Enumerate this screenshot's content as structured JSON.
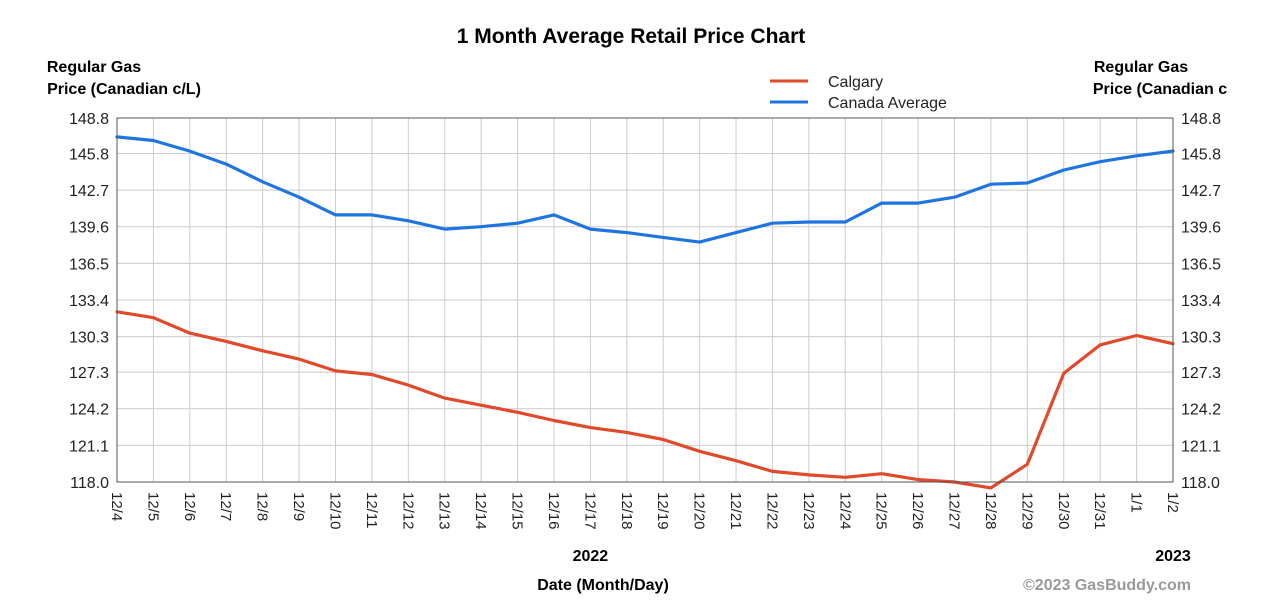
{
  "chart_data": {
    "type": "line",
    "title": "1 Month Average Retail Price Chart",
    "ylabel_left": [
      "Regular Gas",
      "Price (Canadian c/L)"
    ],
    "ylabel_right": [
      "Regular Gas",
      "Price (Canadian c"
    ],
    "xlabel": "Date (Month/Day)",
    "ylim": [
      118.0,
      148.8
    ],
    "y_ticks": [
      "118.0",
      "121.1",
      "124.2",
      "127.3",
      "130.3",
      "133.4",
      "136.5",
      "139.6",
      "142.7",
      "145.8",
      "148.8"
    ],
    "grid": true,
    "legend_position": "top-right",
    "years": [
      {
        "label": "2022",
        "anchor": "12/17"
      },
      {
        "label": "2023",
        "anchor": "1/2"
      }
    ],
    "categories": [
      "12/4",
      "12/5",
      "12/6",
      "12/7",
      "12/8",
      "12/9",
      "12/10",
      "12/11",
      "12/12",
      "12/13",
      "12/14",
      "12/15",
      "12/16",
      "12/17",
      "12/18",
      "12/19",
      "12/20",
      "12/21",
      "12/22",
      "12/23",
      "12/24",
      "12/25",
      "12/26",
      "12/27",
      "12/28",
      "12/29",
      "12/30",
      "12/31",
      "1/1",
      "1/2"
    ],
    "series": [
      {
        "name": "Calgary",
        "color": "#e0492a",
        "values": [
          132.4,
          131.9,
          130.6,
          129.9,
          129.1,
          128.4,
          127.4,
          127.1,
          126.2,
          125.1,
          124.5,
          123.9,
          123.2,
          122.6,
          122.2,
          121.6,
          120.6,
          119.8,
          118.9,
          118.6,
          118.4,
          118.7,
          118.2,
          118.0,
          117.5,
          119.5,
          127.2,
          129.6,
          130.4,
          129.7
        ]
      },
      {
        "name": "Canada Average",
        "color": "#1f75e0",
        "values": [
          147.2,
          146.9,
          146.0,
          144.9,
          143.4,
          142.1,
          140.6,
          140.6,
          140.1,
          139.4,
          139.6,
          139.9,
          140.6,
          139.4,
          139.1,
          138.7,
          138.3,
          139.1,
          139.9,
          140.0,
          140.0,
          141.6,
          141.6,
          142.1,
          143.2,
          143.3,
          144.4,
          145.1,
          145.6,
          146.0
        ]
      }
    ]
  },
  "copyright": "©2023 GasBuddy.com"
}
